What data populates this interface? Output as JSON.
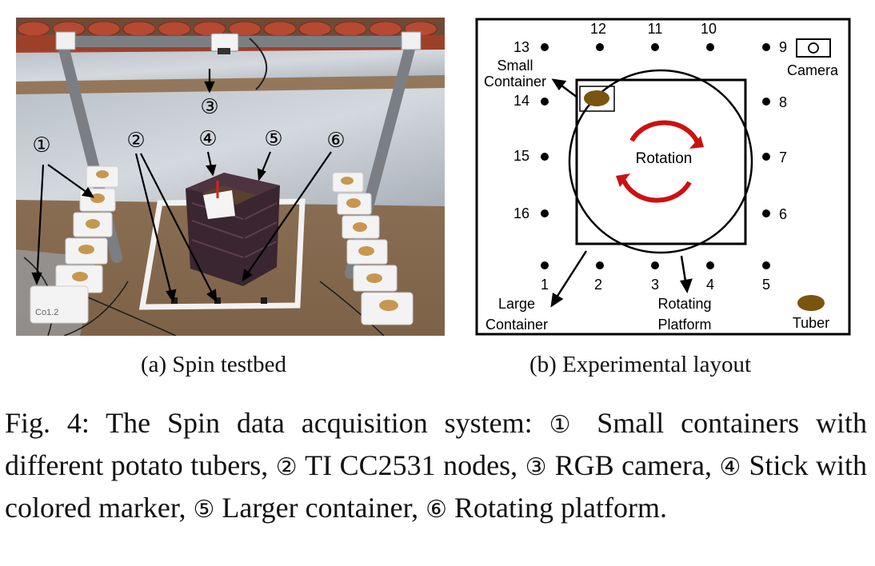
{
  "figure": {
    "panel_a": {
      "caption": "(a) Spin testbed",
      "markers": [
        "①",
        "②",
        "③",
        "④",
        "⑤",
        "⑥"
      ],
      "bag_label": "Co1.2"
    },
    "panel_b": {
      "caption": "(b) Experimental layout",
      "node_numbers": [
        "1",
        "2",
        "3",
        "4",
        "5",
        "6",
        "7",
        "8",
        "9",
        "10",
        "11",
        "12",
        "13",
        "14",
        "15",
        "16"
      ],
      "labels": {
        "small_container": [
          "Small",
          "Container"
        ],
        "camera": "Camera",
        "rotation": "Rotation",
        "large_container": [
          "Large",
          "Container"
        ],
        "rotating_platform": [
          "Rotating",
          "Platform"
        ],
        "tuber": "Tuber"
      },
      "colors": {
        "rotation_arrow": "#cc1111",
        "tuber": "#7a5510"
      }
    },
    "caption": {
      "label": "Fig. 4:",
      "intro": "The Spin data acquisition system:",
      "items": [
        {
          "marker": "①",
          "text": "Small containers with different potato tubers,"
        },
        {
          "marker": "②",
          "text": "TI CC2531 nodes,"
        },
        {
          "marker": "③",
          "text": "RGB camera,"
        },
        {
          "marker": "④",
          "text": "Stick with colored marker,"
        },
        {
          "marker": "⑤",
          "text": "Larger container,"
        },
        {
          "marker": "⑥",
          "text": "Rotating platform."
        }
      ]
    }
  }
}
